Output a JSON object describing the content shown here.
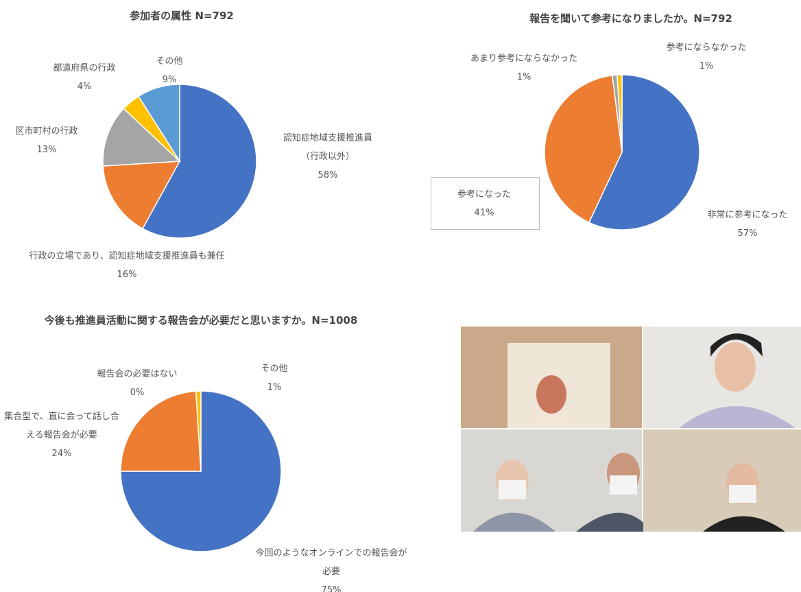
{
  "chart_data": [
    {
      "type": "pie",
      "title": "参加者の属性 N=792",
      "categories": [
        "認知症地域支援推進員（行政以外）",
        "行政の立場であり、認知症地域支援推進員も兼任",
        "区市町村の行政",
        "都道府県の行政",
        "その他"
      ],
      "values": [
        58,
        16,
        13,
        4,
        9
      ],
      "value_labels": [
        "58%",
        "16%",
        "13%",
        "4%",
        "9%"
      ],
      "colors": [
        "#4472c4",
        "#ed7d31",
        "#a5a5a5",
        "#ffc000",
        "#5b9bd5"
      ]
    },
    {
      "type": "pie",
      "title": "報告を聞いて参考になりましたか。N=792",
      "categories": [
        "非常に参考になった",
        "参考になった",
        "あまり参考にならなかった",
        "参考にならなかった"
      ],
      "values": [
        57,
        41,
        1,
        1
      ],
      "value_labels": [
        "57%",
        "41%",
        "1%",
        "1%"
      ],
      "colors": [
        "#4472c4",
        "#ed7d31",
        "#a5a5a5",
        "#ffc000"
      ]
    },
    {
      "type": "pie",
      "title": "今後も推進員活動に関する報告会が必要だと思いますか。N=1008",
      "categories": [
        "今回のようなオンラインでの報告会が必要",
        "集合型で、直に会って話し合える報告会が必要",
        "報告会の必要はない",
        "その他"
      ],
      "values": [
        75,
        24,
        0,
        1
      ],
      "value_labels": [
        "75%",
        "24%",
        "0%",
        "1%"
      ],
      "colors": [
        "#4472c4",
        "#ed7d31",
        "#a5a5a5",
        "#ffc000"
      ]
    }
  ]
}
